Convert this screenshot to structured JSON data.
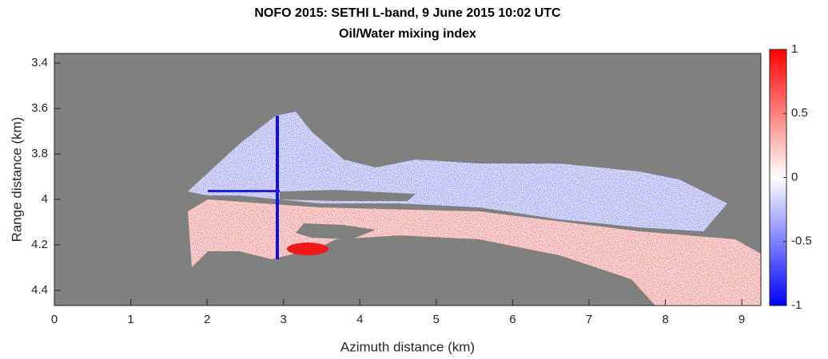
{
  "chart_data": {
    "type": "heatmap",
    "title": "NOFO 2015: SETHI L-band, 9 June 2015 10:02 UTC",
    "subtitle": "Oil/Water mixing index",
    "xlabel": "Azimuth distance (km)",
    "ylabel": "Range distance (km)",
    "xlim": [
      0,
      9.25
    ],
    "xticks": [
      0,
      1,
      2,
      3,
      4,
      5,
      6,
      7,
      8,
      9
    ],
    "ylim": [
      4.467,
      3.358
    ],
    "yticks": [
      3.4,
      3.6,
      3.8,
      4,
      4.2,
      4.4
    ],
    "background_color": "#808080",
    "colorbar": {
      "lim": [
        -1,
        1
      ],
      "ticks": [
        -1,
        -0.5,
        0,
        0.5,
        1
      ],
      "colors": [
        "#0000ff",
        "#ffffff",
        "#ff0000"
      ]
    }
  }
}
